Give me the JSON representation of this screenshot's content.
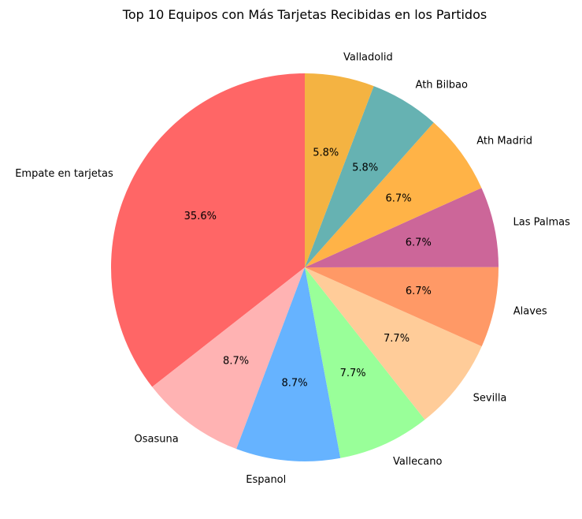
{
  "chart_data": {
    "type": "pie",
    "title": "Top 10 Equipos con Más Tarjetas Recibidas en los Partidos",
    "start_angle_deg": 90,
    "direction": "counterclockwise",
    "slices": [
      {
        "label": "Empate en tarjetas",
        "value": 35.6,
        "pct_label": "35.6%",
        "color": "#ff6666"
      },
      {
        "label": "Osasuna",
        "value": 8.7,
        "pct_label": "8.7%",
        "color": "#ffb3b3"
      },
      {
        "label": "Espanol",
        "value": 8.7,
        "pct_label": "8.7%",
        "color": "#66b3ff"
      },
      {
        "label": "Vallecano",
        "value": 7.7,
        "pct_label": "7.7%",
        "color": "#99ff99"
      },
      {
        "label": "Sevilla",
        "value": 7.7,
        "pct_label": "7.7%",
        "color": "#ffcc99"
      },
      {
        "label": "Alaves",
        "value": 6.7,
        "pct_label": "6.7%",
        "color": "#ff9966"
      },
      {
        "label": "Las Palmas",
        "value": 6.7,
        "pct_label": "6.7%",
        "color": "#cc6699"
      },
      {
        "label": "Ath Madrid",
        "value": 6.7,
        "pct_label": "6.7%",
        "color": "#ffb347"
      },
      {
        "label": "Ath Bilbao",
        "value": 5.8,
        "pct_label": "5.8%",
        "color": "#66b2b2"
      },
      {
        "label": "Valladolid",
        "value": 5.8,
        "pct_label": "5.8%",
        "color": "#f4b342"
      }
    ]
  }
}
